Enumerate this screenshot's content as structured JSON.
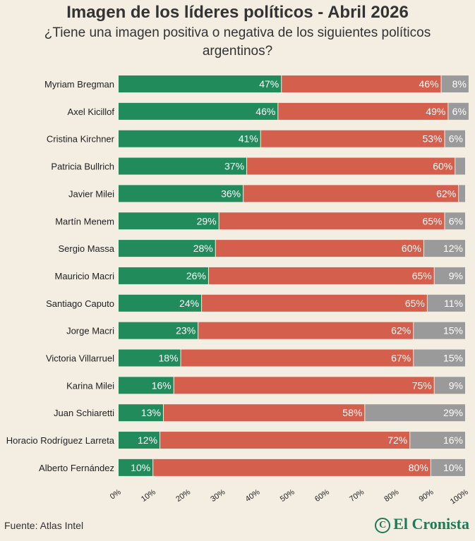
{
  "title": "Imagen de los líderes políticos - Abril 2026",
  "subtitle": "¿Tiene una imagen positiva o negativa de los siguientes políticos argentinos?",
  "source": "Fuente: Atlas Intel",
  "brand": {
    "name": "El Cronista",
    "icon": "circled-c-icon"
  },
  "colors": {
    "positive": "#218b5c",
    "negative": "#d45f4c",
    "other": "#9a9a9a"
  },
  "chart_data": {
    "type": "bar",
    "orientation": "horizontal",
    "stacked": true,
    "categories": [
      "Myriam Bregman",
      "Axel Kicillof",
      "Cristina Kirchner",
      "Patricia Bullrich",
      "Javier Milei",
      "Martín Menem",
      "Sergio Massa",
      "Mauricio Macri",
      "Santiago Caputo",
      "Jorge Macri",
      "Victoria Villarruel",
      "Karina Milei",
      "Juan Schiaretti",
      "Horacio Rodríguez Larreta",
      "Alberto Fernández"
    ],
    "series": [
      {
        "values": [
          47,
          46,
          41,
          37,
          36,
          29,
          28,
          26,
          24,
          23,
          18,
          16,
          13,
          12,
          10
        ],
        "labels": [
          "47%",
          "46%",
          "41%",
          "37%",
          "36%",
          "29%",
          "28%",
          "26%",
          "24%",
          "23%",
          "18%",
          "16%",
          "13%",
          "12%",
          "10%"
        ]
      },
      {
        "values": [
          46,
          49,
          53,
          60,
          62,
          65,
          60,
          65,
          65,
          62,
          67,
          75,
          58,
          72,
          80
        ],
        "labels": [
          "46%",
          "49%",
          "53%",
          "60%",
          "62%",
          "65%",
          "60%",
          "65%",
          "65%",
          "62%",
          "67%",
          "75%",
          "58%",
          "72%",
          "80%"
        ]
      },
      {
        "values": [
          8,
          6,
          6,
          3,
          2,
          6,
          12,
          9,
          11,
          15,
          15,
          9,
          29,
          16,
          10
        ],
        "labels": [
          "8%",
          "6%",
          "6%",
          "",
          "",
          "6%",
          "12%",
          "9%",
          "11%",
          "15%",
          "15%",
          "9%",
          "29%",
          "16%",
          "10%"
        ]
      }
    ],
    "xlim": [
      0,
      100
    ],
    "xticks": [
      "0%",
      "10%",
      "20%",
      "30%",
      "40%",
      "50%",
      "60%",
      "70%",
      "80%",
      "90%",
      "100%"
    ],
    "grid": false,
    "legend": "none"
  }
}
